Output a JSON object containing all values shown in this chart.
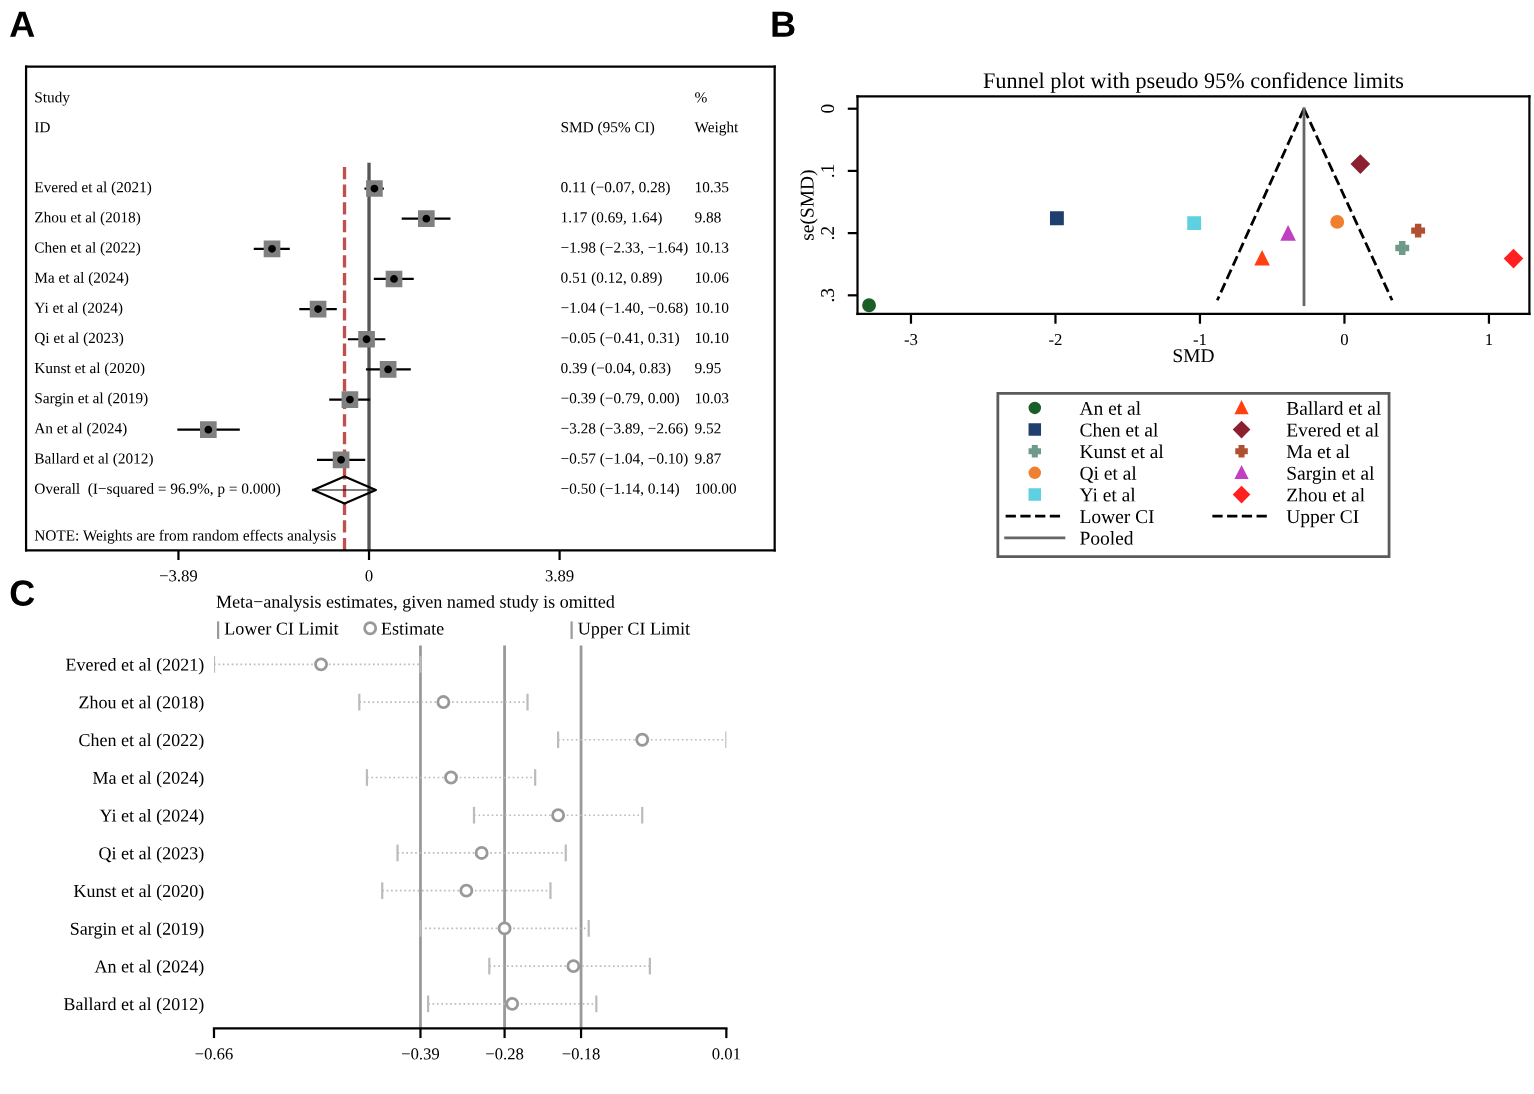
{
  "chart_data": [
    {
      "type": "scatter",
      "orientation": "horizontal",
      "categories": [
        "Evered et al (2021)",
        "Zhou et al (2018)",
        "Chen et al (2022)",
        "Ma et al (2024)",
        "Yi et al (2024)",
        "Qi et al (2023)",
        "Kunst et al (2020)",
        "Sargin et al (2019)",
        "An et al (2024)",
        "Ballard et al (2012)",
        "Overall  (I−squared = 96.9%, p = 0.000)"
      ],
      "series": [
        {
          "color": "#808080",
          "marker": "square",
          "values": [
            0.11,
            1.17,
            -1.98,
            0.51,
            -1.04,
            -0.05,
            0.39,
            -0.39,
            -3.28,
            -0.57,
            null
          ],
          "errors": [
            [
              -0.07,
              0.28
            ],
            [
              0.69,
              1.64
            ],
            [
              -2.33,
              -1.64
            ],
            [
              0.12,
              0.89
            ],
            [
              -1.4,
              -0.68
            ],
            [
              -0.41,
              0.31
            ],
            [
              -0.04,
              0.83
            ],
            [
              -0.79,
              0.0
            ],
            [
              -3.89,
              -2.66
            ],
            [
              -1.04,
              -0.1
            ],
            null
          ]
        },
        {
          "color": "#000000",
          "marker": "diamond",
          "values": [
            null,
            null,
            null,
            null,
            null,
            null,
            null,
            null,
            null,
            null,
            -0.5
          ],
          "errors": [
            null,
            null,
            null,
            null,
            null,
            null,
            null,
            null,
            null,
            null,
            [
              -1.14,
              0.14
            ]
          ]
        }
      ],
      "xlim": [
        -7.0,
        8.28
      ],
      "xticks": [
        {
          "value": -3.89,
          "label": "−3.89"
        },
        0,
        3.89
      ],
      "ref_lines": [
        {
          "axis": "x",
          "value": 0,
          "color": "#555555",
          "line_style": "solid"
        },
        {
          "axis": "x",
          "value": -0.5,
          "color": "#c0504d",
          "line_style": "dashed"
        }
      ],
      "annotations": [
        "A",
        "Study",
        "ID",
        "SMD (95% CI)",
        "%",
        "Weight",
        "0.11 (−0.07, 0.28)",
        "1.17 (0.69, 1.64)",
        "−1.98 (−2.33, −1.64)",
        "0.51 (0.12, 0.89)",
        "−1.04 (−1.40, −0.68)",
        "−0.05 (−0.41, 0.31)",
        "0.39 (−0.04, 0.83)",
        "−0.39 (−0.79, 0.00)",
        "−3.28 (−3.89, −2.66)",
        "−0.57 (−1.04, −0.10)",
        "−0.50 (−1.14, 0.14)",
        "10.35",
        "9.88",
        "10.13",
        "10.06",
        "10.10",
        "10.10",
        "9.95",
        "10.03",
        "9.52",
        "9.87",
        "100.00",
        "NOTE: Weights are from random effects analysis"
      ],
      "grid": false,
      "legend": false
    },
    {
      "type": "scatter",
      "title": "Funnel plot with pseudo 95% confidence limits",
      "xlabel": "SMD",
      "ylabel": "se(SMD)",
      "series": [
        {
          "name": "An et al",
          "color": "#1a5e2a",
          "marker": "circle",
          "x": [
            -3.29
          ],
          "values": [
            0.316
          ]
        },
        {
          "name": "Ballard et al",
          "color": "#ff4010",
          "marker": "triangle",
          "x": [
            -0.57
          ],
          "values": [
            0.241
          ]
        },
        {
          "name": "Chen et al",
          "color": "#1f3f6e",
          "marker": "square",
          "x": [
            -1.99
          ],
          "values": [
            0.176
          ]
        },
        {
          "name": "Evered et al",
          "color": "#8b2030",
          "marker": "diamond",
          "x": [
            0.11
          ],
          "values": [
            0.089
          ]
        },
        {
          "name": "Kunst et al",
          "color": "#6f9a8a",
          "marker": "cross",
          "x": [
            0.4
          ],
          "values": [
            0.224
          ]
        },
        {
          "name": "Ma et al",
          "color": "#b05030",
          "marker": "cross",
          "x": [
            0.51
          ],
          "values": [
            0.196
          ]
        },
        {
          "name": "Qi et al",
          "color": "#f08030",
          "marker": "circle",
          "x": [
            -0.05
          ],
          "values": [
            0.182
          ]
        },
        {
          "name": "Sargin et al",
          "color": "#c040c0",
          "marker": "triangle",
          "x": [
            -0.39
          ],
          "values": [
            0.201
          ]
        },
        {
          "name": "Yi et al",
          "color": "#5fd0e0",
          "marker": "square",
          "x": [
            -1.04
          ],
          "values": [
            0.184
          ]
        },
        {
          "name": "Zhou et al",
          "color": "#ff2020",
          "marker": "diamond",
          "x": [
            1.17
          ],
          "values": [
            0.241
          ]
        },
        {
          "name": "Lower CI",
          "type": "line",
          "line_style": "dashed",
          "color": "#000000",
          "x": [
            -0.28,
            -0.88
          ],
          "values": [
            0,
            0.308
          ]
        },
        {
          "name": "Upper CI",
          "type": "line",
          "line_style": "dashed",
          "color": "#000000",
          "x": [
            -0.28,
            0.33
          ],
          "values": [
            0,
            0.308
          ]
        },
        {
          "name": "Pooled",
          "type": "line",
          "line_style": "solid",
          "color": "#666666",
          "x": [
            -0.28,
            -0.28
          ],
          "values": [
            0,
            0.315
          ]
        }
      ],
      "xlim": [
        -3.37,
        1.28
      ],
      "xticks": [
        -3,
        -2,
        -1,
        0,
        1
      ],
      "ylim": [
        0.33,
        -0.02
      ],
      "yticks": [
        0,
        {
          "value": 0.1,
          "label": ".1"
        },
        {
          "value": 0.2,
          "label": ".2"
        },
        {
          "value": 0.3,
          "label": ".3"
        }
      ],
      "annotations": [
        "B"
      ],
      "legend": "bottom",
      "grid": false
    },
    {
      "type": "scatter",
      "orientation": "horizontal",
      "title": "Meta−analysis estimates, given named study is omitted",
      "categories": [
        "Evered et al (2021)",
        "Zhou et al (2018)",
        "Chen et al (2022)",
        "Ma et al (2024)",
        "Yi et al (2024)",
        "Qi et al (2023)",
        "Kunst et al (2020)",
        "Sargin et al (2019)",
        "An et al (2024)",
        "Ballard et al (2012)"
      ],
      "series": [
        {
          "name": "Estimate",
          "color": "#999999",
          "marker": "circle",
          "values": [
            -0.52,
            -0.36,
            -0.1,
            -0.35,
            -0.21,
            -0.31,
            -0.33,
            -0.28,
            -0.19,
            -0.27
          ],
          "errors": [
            [
              -0.66,
              -0.39
            ],
            [
              -0.47,
              -0.25
            ],
            [
              -0.21,
              0.01
            ],
            [
              -0.46,
              -0.24
            ],
            [
              -0.32,
              -0.1
            ],
            [
              -0.42,
              -0.2
            ],
            [
              -0.44,
              -0.22
            ],
            [
              -0.39,
              -0.17
            ],
            [
              -0.3,
              -0.09
            ],
            [
              -0.38,
              -0.16
            ]
          ]
        }
      ],
      "xlim": [
        -0.66,
        0.01
      ],
      "xticks": [
        {
          "value": -0.66,
          "label": "−0.66"
        },
        {
          "value": -0.39,
          "label": "−0.39"
        },
        {
          "value": -0.28,
          "label": "−0.28"
        },
        {
          "value": -0.18,
          "label": "−0.18"
        },
        0.01
      ],
      "ref_lines": [
        {
          "axis": "x",
          "value": -0.39,
          "color": "#999999"
        },
        {
          "axis": "x",
          "value": -0.28,
          "color": "#999999"
        },
        {
          "axis": "x",
          "value": -0.18,
          "color": "#999999"
        }
      ],
      "annotations": [
        "C",
        "Lower CI Limit",
        "Upper CI Limit"
      ],
      "legend": "top",
      "grid": false
    }
  ]
}
